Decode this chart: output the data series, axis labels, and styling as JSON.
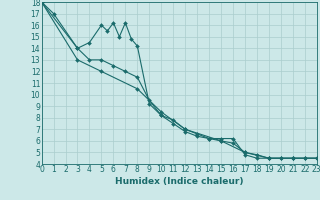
{
  "background_color": "#cce8e8",
  "grid_color": "#aacece",
  "line_color": "#1a6b6b",
  "xlabel": "Humidex (Indice chaleur)",
  "ylim": [
    4,
    18
  ],
  "xlim": [
    0,
    23
  ],
  "yticks": [
    4,
    5,
    6,
    7,
    8,
    9,
    10,
    11,
    12,
    13,
    14,
    15,
    16,
    17,
    18
  ],
  "xticks": [
    0,
    1,
    2,
    3,
    4,
    5,
    6,
    7,
    8,
    9,
    10,
    11,
    12,
    13,
    14,
    15,
    16,
    17,
    18,
    19,
    20,
    21,
    22,
    23
  ],
  "series": [
    {
      "x": [
        0,
        1,
        3,
        4,
        5,
        5.5,
        6,
        6.5,
        7,
        7.5,
        8,
        9,
        10,
        11,
        12,
        13,
        14,
        15,
        16,
        17,
        18,
        19,
        20,
        21,
        22,
        23
      ],
      "y": [
        18,
        17,
        14,
        14.5,
        16,
        15.5,
        16.2,
        15.0,
        16.2,
        14.8,
        14.2,
        9.2,
        8.2,
        7.5,
        6.8,
        6.4,
        6.2,
        6.2,
        6.2,
        4.8,
        4.5,
        4.5,
        4.5,
        4.5,
        4.5,
        4.5
      ]
    },
    {
      "x": [
        0,
        3,
        4,
        5,
        6,
        7,
        8,
        9,
        10,
        11,
        12,
        13,
        14,
        15,
        16,
        17,
        18,
        19,
        20,
        21,
        22,
        23
      ],
      "y": [
        18,
        14,
        13,
        13,
        12.5,
        12,
        11.5,
        9.5,
        8.2,
        7.8,
        7.0,
        6.6,
        6.2,
        6.0,
        5.8,
        5.0,
        4.8,
        4.5,
        4.5,
        4.5,
        4.5,
        4.5
      ]
    },
    {
      "x": [
        0,
        3,
        5,
        8,
        10,
        12,
        15,
        17,
        19,
        21,
        23
      ],
      "y": [
        18,
        13,
        12,
        10.5,
        8.5,
        7.0,
        6.0,
        5.0,
        4.5,
        4.5,
        4.5
      ]
    }
  ],
  "tick_fontsize": 5.5,
  "xlabel_fontsize": 6.5,
  "marker_size": 2.0,
  "line_width": 0.8
}
